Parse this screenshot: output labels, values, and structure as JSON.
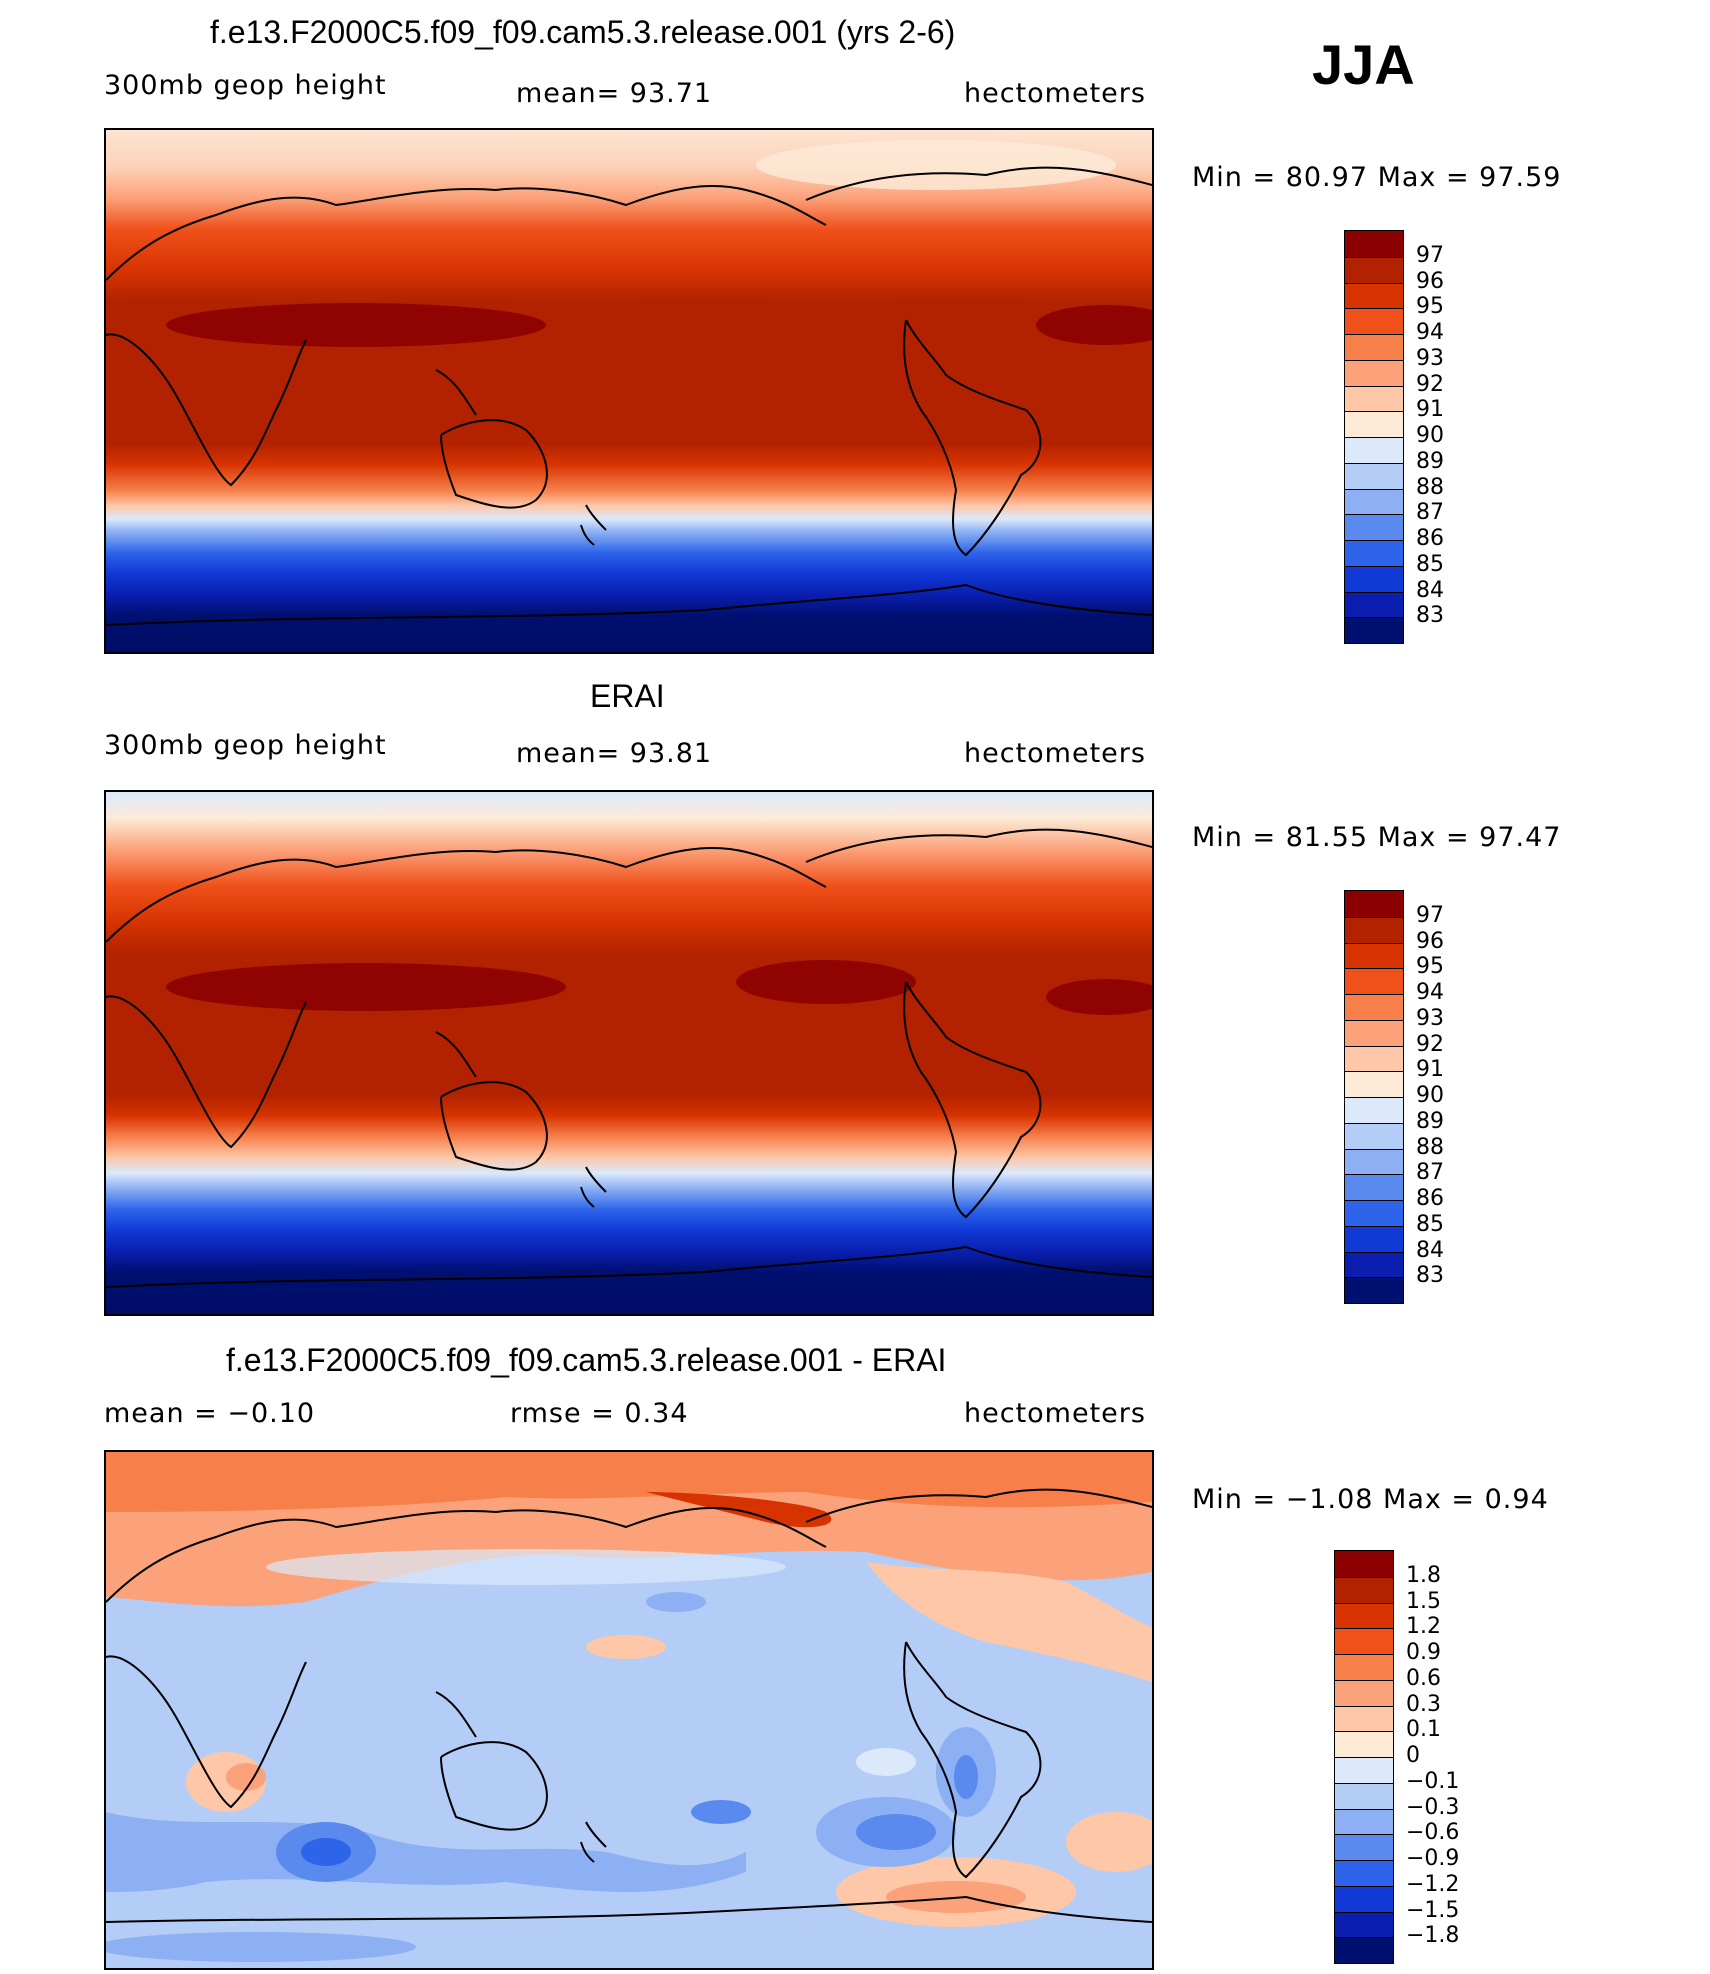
{
  "season": "JJA",
  "panels": [
    {
      "title": "f.e13.F2000C5.f09_f09.cam5.3.release.001 (yrs 2-6)",
      "left_text": "300mb  geop  height",
      "stat_text": "mean=   93.71",
      "units": "hectometers",
      "range_text": "Min  =    80.97  Max  =    97.59",
      "colorbar": {
        "labels": [
          "97",
          "96",
          "95",
          "94",
          "93",
          "92",
          "91",
          "90",
          "89",
          "88",
          "87",
          "86",
          "85",
          "84",
          "83"
        ],
        "colors": [
          "#8b0000",
          "#b22200",
          "#d63300",
          "#f0501a",
          "#f77f4a",
          "#fba27a",
          "#fdc7a8",
          "#fdebd8",
          "#dbe9fb",
          "#b3cdf7",
          "#8cb0f3",
          "#5a8aee",
          "#2e64ea",
          "#1039d6",
          "#0a1fb0",
          "#001070"
        ]
      }
    },
    {
      "title": "ERAI",
      "left_text": "300mb  geop  height",
      "stat_text": "mean=   93.81",
      "units": "hectometers",
      "range_text": "Min  =    81.55  Max  =    97.47",
      "colorbar": {
        "labels": [
          "97",
          "96",
          "95",
          "94",
          "93",
          "92",
          "91",
          "90",
          "89",
          "88",
          "87",
          "86",
          "85",
          "84",
          "83"
        ],
        "colors": [
          "#8b0000",
          "#b22200",
          "#d63300",
          "#f0501a",
          "#f77f4a",
          "#fba27a",
          "#fdc7a8",
          "#fdebd8",
          "#dbe9fb",
          "#b3cdf7",
          "#8cb0f3",
          "#5a8aee",
          "#2e64ea",
          "#1039d6",
          "#0a1fb0",
          "#001070"
        ]
      }
    },
    {
      "title": "f.e13.F2000C5.f09_f09.cam5.3.release.001 - ERAI",
      "left_text": "mean  =    −0.10",
      "stat_text": "rmse  =     0.34",
      "units": "hectometers",
      "range_text": "Min  =    −1.08  Max  =      0.94",
      "colorbar": {
        "labels": [
          "1.8",
          "1.5",
          "1.2",
          "0.9",
          "0.6",
          "0.3",
          "0.1",
          "0",
          "−0.1",
          "−0.3",
          "−0.6",
          "−0.9",
          "−1.2",
          "−1.5",
          "−1.8"
        ],
        "colors": [
          "#8b0000",
          "#b22200",
          "#d63300",
          "#f0501a",
          "#f77f4a",
          "#fba27a",
          "#fdc7a8",
          "#fdebd8",
          "#dbe9fb",
          "#b3cdf7",
          "#8cb0f3",
          "#5a8aee",
          "#2e64ea",
          "#1039d6",
          "#0a1fb0",
          "#001070"
        ]
      }
    }
  ]
}
